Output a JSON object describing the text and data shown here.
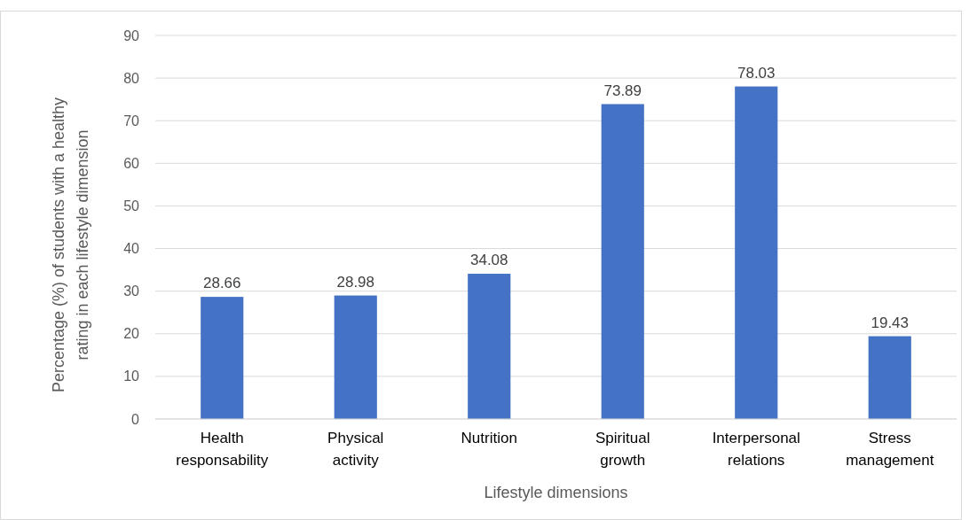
{
  "chart_data": {
    "type": "bar",
    "categories": [
      "Health responsability",
      "Physical activity",
      "Nutrition",
      "Spiritual growth",
      "Interpersonal relations",
      "Stress management"
    ],
    "values": [
      28.66,
      28.98,
      34.08,
      73.89,
      78.03,
      19.43
    ],
    "color": "#4472c4",
    "xlabel": "Lifestyle dimensions",
    "ylabel": "Percentage (%) of students with a healthy rating in each lifestyle dimension",
    "ylim": [
      0,
      90
    ],
    "yticks": [
      0,
      10,
      20,
      30,
      40,
      50,
      60,
      70,
      80,
      90
    ],
    "grid": "y",
    "data_labels": true
  }
}
